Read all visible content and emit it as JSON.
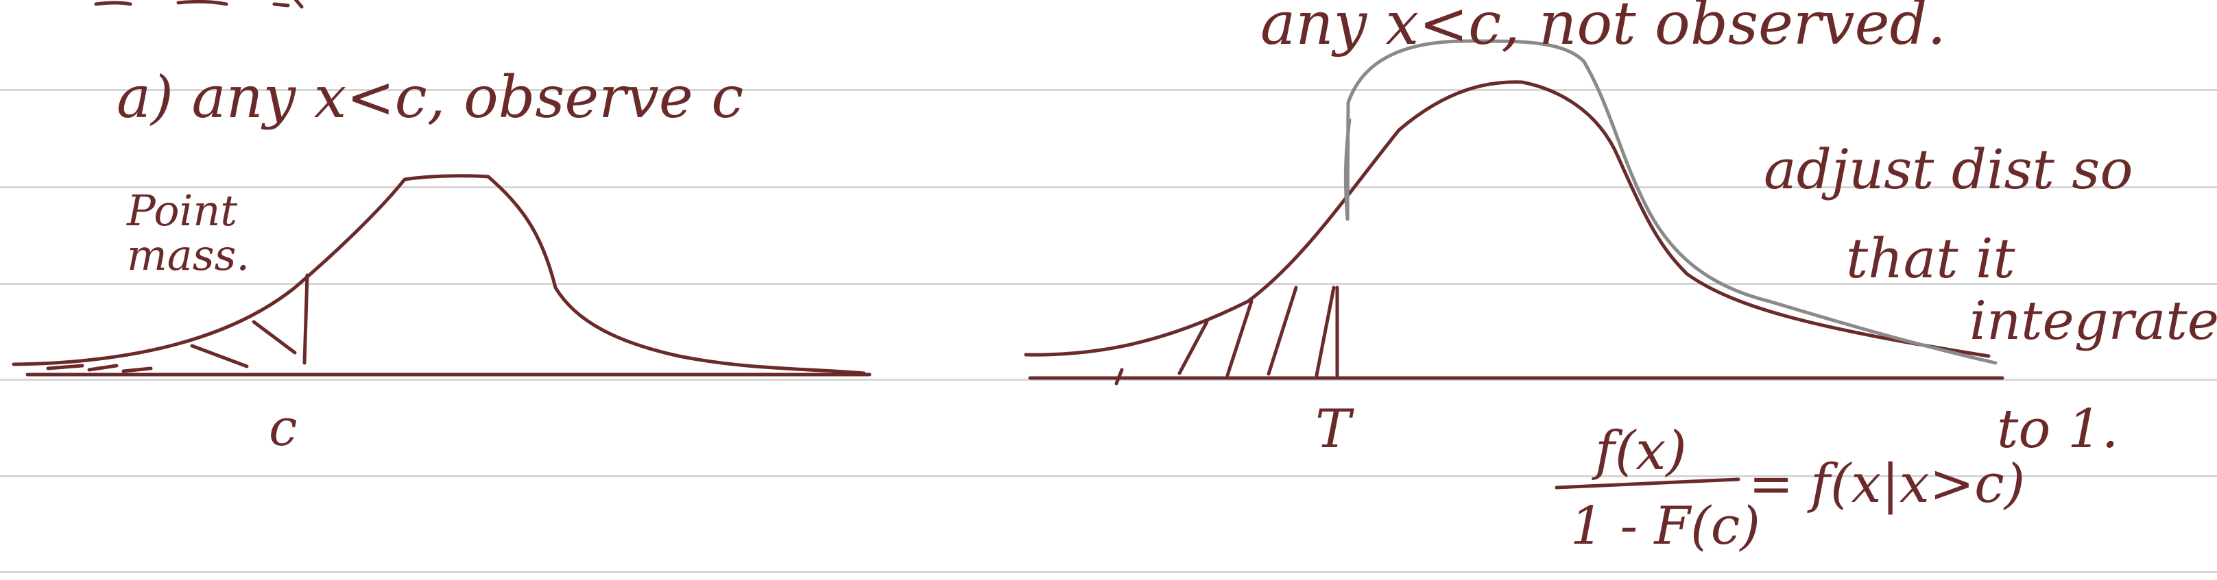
{
  "notes": {
    "left": {
      "heading": "a) any x<c, observe c",
      "point_mass": "Point mass.",
      "axis_label": "c"
    },
    "right": {
      "heading": "any x<c, not observed.",
      "axis_label": "T",
      "adjust_line1": "adjust dist so",
      "adjust_line2": "that it",
      "adjust_line3": "integrate",
      "adjust_line4": "to 1.",
      "formula_numerator": "f(x)",
      "formula_denominator": "1 - F(c)",
      "formula_rhs": "= f(x|x>c)"
    }
  },
  "colors": {
    "ink": "#6b2a2a",
    "gray_ink": "#8a8a8a",
    "rule": "#d6d6d6",
    "paper": "#ffffff"
  }
}
